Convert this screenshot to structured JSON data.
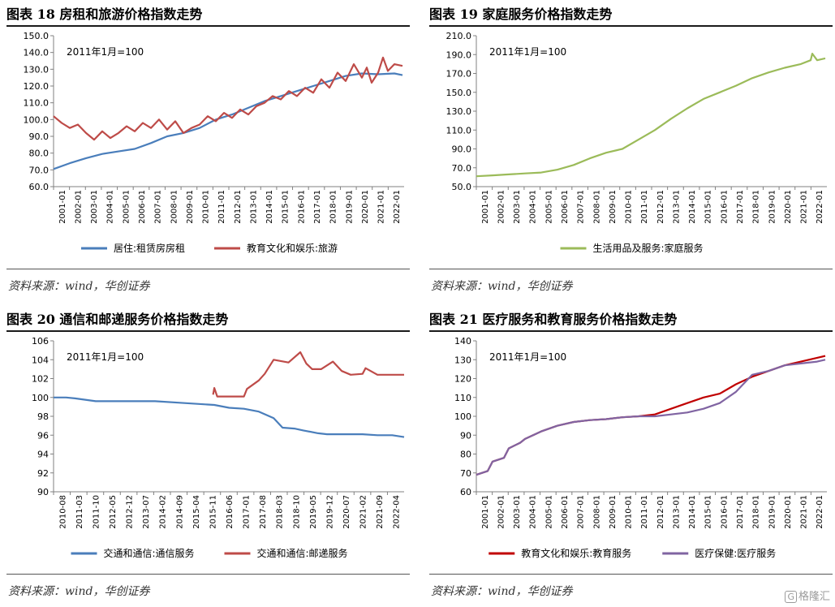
{
  "panels": [
    {
      "title": "图表 18  房租和旅游价格指数走势",
      "source": "资料来源：wind，华创证券"
    },
    {
      "title": "图表 19  家庭服务价格指数走势",
      "source": "资料来源：wind，华创证券"
    },
    {
      "title": "图表 20  通信和邮递服务价格指数走势",
      "source": "资料来源：wind，华创证券"
    },
    {
      "title": "图表 21  医疗服务和教育服务价格指数走势",
      "source": "资料来源：wind，华创证券"
    }
  ],
  "watermark": {
    "mark": "G",
    "text": "格隆汇"
  },
  "chart_data": [
    {
      "type": "line",
      "annotation": "2011年1月=100",
      "ylim": [
        60,
        150
      ],
      "yticks": [
        "60.0",
        "70.0",
        "80.0",
        "90.0",
        "100.0",
        "110.0",
        "120.0",
        "130.0",
        "140.0",
        "150.0"
      ],
      "xlim": [
        2001.0,
        2022.6
      ],
      "xticks": [
        "2001-01",
        "2002-01",
        "2003-01",
        "2004-01",
        "2005-01",
        "2006-01",
        "2007-01",
        "2008-01",
        "2009-01",
        "2010-01",
        "2011-01",
        "2012-01",
        "2013-01",
        "2014-01",
        "2015-01",
        "2016-01",
        "2017-01",
        "2018-01",
        "2019-01",
        "2020-01",
        "2021-01",
        "2022-01"
      ],
      "series": [
        {
          "name": "居住:租赁房房租",
          "color": "#4a7ebb",
          "x": [
            2001,
            2002,
            2003,
            2004,
            2005,
            2006,
            2007,
            2008,
            2009,
            2010,
            2011,
            2012,
            2013,
            2014,
            2015,
            2016,
            2017,
            2018,
            2019,
            2020,
            2021,
            2022,
            2022.5
          ],
          "values": [
            70.5,
            74,
            77,
            79.5,
            81,
            82.5,
            86,
            90,
            92,
            95,
            100,
            103,
            107,
            111,
            114,
            117,
            120,
            123,
            126,
            127.5,
            127,
            127.5,
            126.5
          ]
        },
        {
          "name": "教育文化和娱乐:旅游",
          "color": "#be4b48",
          "x": [
            2001,
            2001.5,
            2002,
            2002.5,
            2003,
            2003.5,
            2004,
            2004.5,
            2005,
            2005.5,
            2006,
            2006.5,
            2007,
            2007.5,
            2008,
            2008.5,
            2009,
            2009.5,
            2010,
            2010.5,
            2011,
            2011.5,
            2012,
            2012.5,
            2013,
            2013.5,
            2014,
            2014.5,
            2015,
            2015.5,
            2016,
            2016.5,
            2017,
            2017.5,
            2018,
            2018.5,
            2019,
            2019.5,
            2020,
            2020.3,
            2020.6,
            2021,
            2021.3,
            2021.6,
            2022,
            2022.5
          ],
          "values": [
            102,
            98,
            95,
            97,
            92,
            88,
            93,
            89,
            92,
            96,
            93,
            98,
            95,
            100,
            94,
            99,
            92,
            95,
            97,
            102,
            99,
            104,
            101,
            106,
            103,
            108,
            110,
            114,
            112,
            117,
            114,
            119,
            116,
            124,
            119,
            128,
            123,
            133,
            125,
            131,
            122,
            128,
            137,
            129,
            133,
            132
          ]
        }
      ]
    },
    {
      "type": "line",
      "annotation": "2011年1月=100",
      "ylim": [
        50,
        210
      ],
      "yticks": [
        "50.0",
        "70.0",
        "90.0",
        "110.0",
        "130.0",
        "150.0",
        "170.0",
        "190.0",
        "210.0"
      ],
      "xlim": [
        2001.0,
        2022.6
      ],
      "xticks": [
        "2001-01",
        "2002-01",
        "2003-01",
        "2004-01",
        "2005-01",
        "2006-01",
        "2007-01",
        "2008-01",
        "2009-01",
        "2010-01",
        "2011-01",
        "2012-01",
        "2013-01",
        "2014-01",
        "2015-01",
        "2016-01",
        "2017-01",
        "2018-01",
        "2019-01",
        "2020-01",
        "2021-01",
        "2022-01"
      ],
      "series": [
        {
          "name": "生活用品及服务:家庭服务",
          "color": "#9bbb59",
          "x": [
            2001,
            2002,
            2003,
            2004,
            2005,
            2006,
            2007,
            2008,
            2009,
            2010,
            2011,
            2012,
            2013,
            2014,
            2015,
            2016,
            2017,
            2018,
            2019,
            2020,
            2021,
            2021.6,
            2021.7,
            2022,
            2022.5
          ],
          "values": [
            61,
            62,
            63,
            64,
            65,
            68,
            73,
            80,
            86,
            90,
            100,
            110,
            122,
            133,
            143,
            150,
            157,
            165,
            171,
            176,
            180,
            184,
            191,
            184,
            186
          ]
        }
      ]
    },
    {
      "type": "line",
      "annotation": "2011年1月=100",
      "ylim": [
        90,
        106
      ],
      "yticks": [
        "90",
        "92",
        "94",
        "96",
        "98",
        "100",
        "102",
        "104",
        "106"
      ],
      "xlim": [
        2010.58,
        2022.4
      ],
      "xticks": [
        "2010-08",
        "2011-03",
        "2011-10",
        "2012-05",
        "2012-12",
        "2013-07",
        "2014-02",
        "2014-09",
        "2015-04",
        "2015-11",
        "2016-06",
        "2017-01",
        "2017-08",
        "2018-03",
        "2018-10",
        "2019-05",
        "2019-12",
        "2020-07",
        "2021-02",
        "2021-09",
        "2022-04"
      ],
      "series": [
        {
          "name": "交通和通信:通信服务",
          "color": "#4a7ebb",
          "x": [
            2010.58,
            2011.0,
            2011.3,
            2012.0,
            2013.0,
            2014.0,
            2015.0,
            2016.0,
            2016.5,
            2017.0,
            2017.5,
            2018.0,
            2018.3,
            2018.7,
            2019.0,
            2019.5,
            2019.8,
            2020.5,
            2021.0,
            2021.5,
            2022.0,
            2022.4
          ],
          "values": [
            100.0,
            100.0,
            99.9,
            99.6,
            99.6,
            99.6,
            99.4,
            99.2,
            98.9,
            98.8,
            98.5,
            97.8,
            96.8,
            96.7,
            96.5,
            96.2,
            96.1,
            96.1,
            96.1,
            96.0,
            96.0,
            95.8
          ]
        },
        {
          "name": "交通和通信:邮递服务",
          "color": "#be4b48",
          "x": [
            2015.96,
            2016.0,
            2016.1,
            2017.0,
            2017.1,
            2017.5,
            2017.7,
            2018.0,
            2018.5,
            2018.9,
            2019.1,
            2019.3,
            2019.6,
            2020.0,
            2020.3,
            2020.6,
            2021.0,
            2021.1,
            2021.5,
            2022.0,
            2022.4
          ],
          "values": [
            100.3,
            101.0,
            100.1,
            100.1,
            100.9,
            101.8,
            102.5,
            104.0,
            103.7,
            104.8,
            103.6,
            103.0,
            103.0,
            103.8,
            102.8,
            102.4,
            102.5,
            103.1,
            102.4,
            102.4,
            102.4
          ]
        }
      ]
    },
    {
      "type": "line",
      "annotation": "2011年1月=100",
      "ylim": [
        60,
        140
      ],
      "yticks": [
        "60",
        "70",
        "80",
        "90",
        "100",
        "110",
        "120",
        "130",
        "140"
      ],
      "xlim": [
        2001.0,
        2022.6
      ],
      "xticks": [
        "2001-01",
        "2002-01",
        "2003-01",
        "2004-01",
        "2005-01",
        "2006-01",
        "2007-01",
        "2008-01",
        "2009-01",
        "2010-01",
        "2011-01",
        "2012-01",
        "2013-01",
        "2014-01",
        "2015-01",
        "2016-01",
        "2017-01",
        "2018-01",
        "2019-01",
        "2020-01",
        "2021-01",
        "2022-01"
      ],
      "series": [
        {
          "name": "教育文化和娱乐:教育服务",
          "color": "#c00000",
          "x": [
            2001,
            2001.7,
            2002,
            2002.7,
            2003,
            2003.7,
            2004,
            2005,
            2006,
            2007,
            2008,
            2009,
            2010,
            2011,
            2012,
            2013,
            2014,
            2015,
            2016,
            2017,
            2018,
            2019,
            2020,
            2021,
            2022,
            2022.5
          ],
          "values": [
            69,
            71,
            76,
            78,
            83,
            86,
            88,
            92,
            95,
            97,
            98,
            98.5,
            99.5,
            100,
            101,
            104,
            107,
            110,
            112,
            117,
            121,
            124,
            127,
            129,
            131,
            132
          ]
        },
        {
          "name": "医疗保健:医疗服务",
          "color": "#8064a2",
          "x": [
            2001,
            2001.7,
            2002,
            2002.7,
            2003,
            2003.7,
            2004,
            2005,
            2006,
            2007,
            2008,
            2009,
            2010,
            2011,
            2012,
            2013,
            2014,
            2015,
            2016,
            2017,
            2018,
            2019,
            2020,
            2021,
            2022,
            2022.5
          ],
          "values": [
            69,
            71,
            76,
            78,
            83,
            86,
            88,
            92,
            95,
            97,
            98,
            98.5,
            99.5,
            100,
            100,
            101,
            102,
            104,
            107,
            113,
            122,
            124,
            127,
            128,
            129,
            130
          ]
        }
      ]
    }
  ]
}
